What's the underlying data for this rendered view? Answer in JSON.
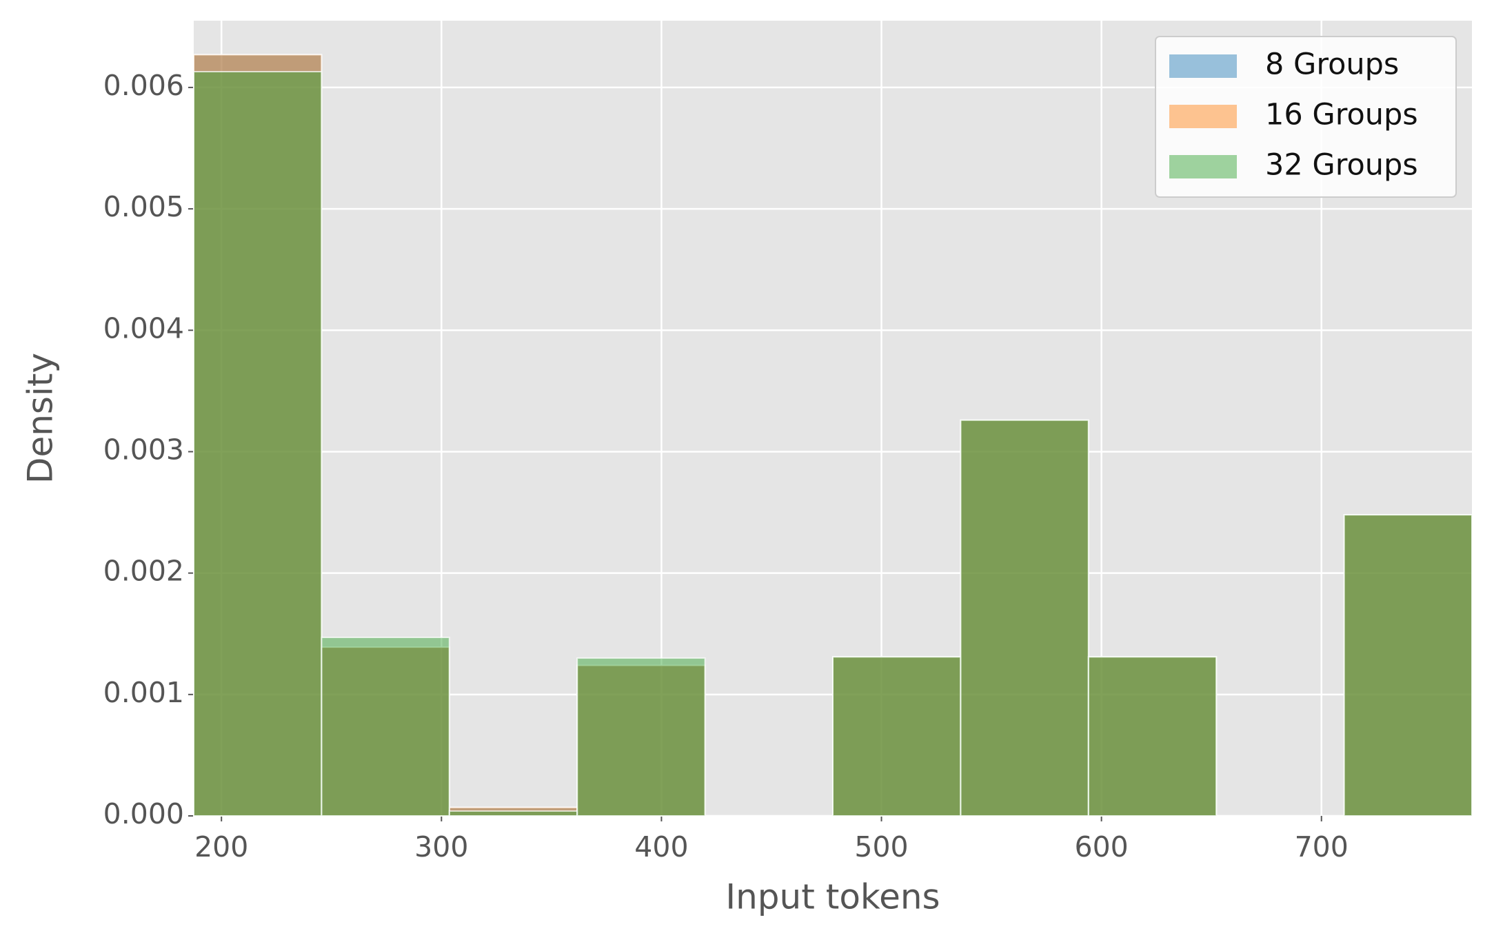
{
  "chart_data": {
    "type": "histogram",
    "xlabel": "Input tokens",
    "ylabel": "Density",
    "bins": [
      187.4,
      245.5,
      303.6,
      361.7,
      419.8,
      477.9,
      536.0,
      594.1,
      652.2,
      710.3,
      768.4
    ],
    "series": [
      {
        "name": "8 Groups",
        "color": "#1f77b4",
        "values": [
          0.00627,
          0.00139,
          7e-05,
          0.00124,
          0,
          0.00131,
          0.00326,
          0.00131,
          0,
          0.00248
        ]
      },
      {
        "name": "16 Groups",
        "color": "#ff7f0e",
        "values": [
          0.00627,
          0.00139,
          7e-05,
          0.00124,
          0,
          0.00131,
          0.00326,
          0.00131,
          0,
          0.00248
        ]
      },
      {
        "name": "32 Groups",
        "color": "#2ca02c",
        "values": [
          0.00613,
          0.00147,
          4e-05,
          0.0013,
          0,
          0.00131,
          0.00326,
          0.00131,
          0,
          0.00248
        ]
      }
    ],
    "xlim": [
      187.4,
      768.4
    ],
    "ylim": [
      0,
      0.00655
    ],
    "xticks": [
      200,
      300,
      400,
      500,
      600,
      700
    ],
    "yticks": [
      {
        "value": 0,
        "label": "0.000"
      },
      {
        "value": 0.001,
        "label": "0.001"
      },
      {
        "value": 0.002,
        "label": "0.002"
      },
      {
        "value": 0.003,
        "label": "0.003"
      },
      {
        "value": 0.004,
        "label": "0.004"
      },
      {
        "value": 0.005,
        "label": "0.005"
      },
      {
        "value": 0.006,
        "label": "0.006"
      }
    ],
    "grid": true,
    "legend": "upper right"
  }
}
